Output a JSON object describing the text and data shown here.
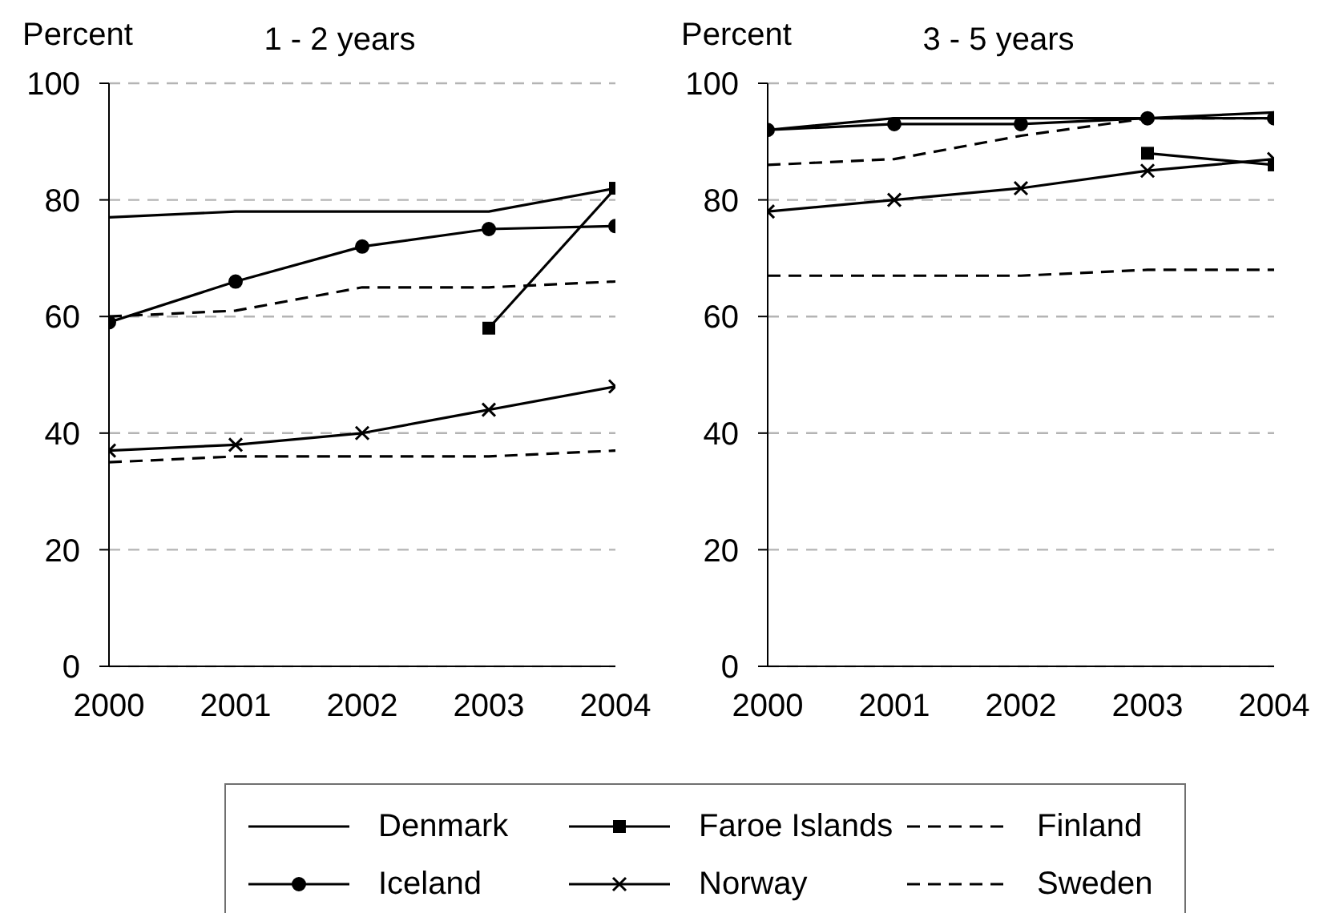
{
  "chart_data": [
    {
      "type": "line",
      "title": "1 - 2 years",
      "ylabel": "Percent",
      "categories": [
        "2000",
        "2001",
        "2002",
        "2003",
        "2004"
      ],
      "ylim": [
        0,
        100
      ],
      "yticks": [
        0,
        20,
        40,
        60,
        80,
        100
      ],
      "grid": "y",
      "legend": "bottom",
      "series": [
        {
          "name": "Denmark",
          "color": "#000000",
          "values": [
            77,
            78,
            78,
            78,
            82
          ],
          "marker": "none",
          "line_style": "solid"
        },
        {
          "name": "Faroe Islands",
          "color": "#000000",
          "values": [
            null,
            null,
            null,
            58,
            82
          ],
          "marker": "square",
          "line_style": "solid"
        },
        {
          "name": "Finland",
          "color": "#000000",
          "values": [
            35,
            36,
            36,
            36,
            37
          ],
          "marker": "none",
          "line_style": "dashed"
        },
        {
          "name": "Iceland",
          "color": "#000000",
          "values": [
            59,
            66,
            72,
            75,
            75.5
          ],
          "marker": "circle",
          "line_style": "solid"
        },
        {
          "name": "Norway",
          "color": "#000000",
          "values": [
            37,
            38,
            40,
            44,
            48
          ],
          "marker": "cross",
          "line_style": "solid"
        },
        {
          "name": "Sweden",
          "color": "#000000",
          "values": [
            60,
            61,
            65,
            65,
            66
          ],
          "marker": "none",
          "line_style": "dashed"
        }
      ]
    },
    {
      "type": "line",
      "title": "3 - 5 years",
      "ylabel": "Percent",
      "categories": [
        "2000",
        "2001",
        "2002",
        "2003",
        "2004"
      ],
      "ylim": [
        0,
        100
      ],
      "yticks": [
        0,
        20,
        40,
        60,
        80,
        100
      ],
      "grid": "y",
      "legend": "bottom",
      "series": [
        {
          "name": "Denmark",
          "color": "#000000",
          "values": [
            92,
            94,
            94,
            94,
            95
          ],
          "marker": "none",
          "line_style": "solid"
        },
        {
          "name": "Faroe Islands",
          "color": "#000000",
          "values": [
            null,
            null,
            null,
            88,
            86
          ],
          "marker": "square",
          "line_style": "solid"
        },
        {
          "name": "Finland",
          "color": "#000000",
          "values": [
            67,
            67,
            67,
            68,
            68
          ],
          "marker": "none",
          "line_style": "dashed"
        },
        {
          "name": "Iceland",
          "color": "#000000",
          "values": [
            92,
            93,
            93,
            94,
            94
          ],
          "marker": "circle",
          "line_style": "solid"
        },
        {
          "name": "Norway",
          "color": "#000000",
          "values": [
            78,
            80,
            82,
            85,
            87
          ],
          "marker": "cross",
          "line_style": "solid"
        },
        {
          "name": "Sweden",
          "color": "#000000",
          "values": [
            86,
            87,
            91,
            94,
            94
          ],
          "marker": "none",
          "line_style": "dashed"
        }
      ]
    }
  ]
}
